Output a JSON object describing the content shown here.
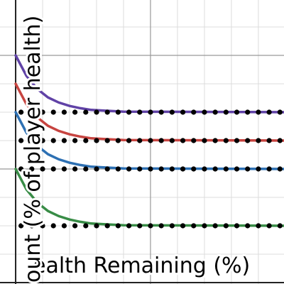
{
  "chart_data": {
    "type": "line",
    "x_label": "ealth Remaining (%)",
    "y_label": "ount (% of player health)",
    "xlim": [
      -5.8,
      99.5
    ],
    "ylim": [
      -0.25,
      49.75
    ],
    "xticks": [
      0,
      10,
      20,
      30,
      40,
      50,
      60,
      70,
      80,
      90
    ],
    "major_xticks": [
      0,
      50
    ],
    "yticks": [
      0,
      5,
      10,
      15,
      20,
      25,
      30,
      35,
      40,
      45
    ],
    "major_yticks": [
      0,
      20,
      40
    ],
    "grid": true,
    "series": [
      {
        "type": "line",
        "color": "#6042a6",
        "x": [
          0,
          4,
          8,
          12,
          16,
          20,
          24,
          28,
          32,
          40,
          100
        ],
        "values": [
          40,
          36.4,
          34.1,
          32.6,
          31.7,
          31.1,
          30.7,
          30.4,
          30.3,
          30.1,
          30
        ]
      },
      {
        "type": "line",
        "color": "#c74440",
        "x": [
          0,
          4,
          8,
          12,
          16,
          20,
          24,
          28,
          32,
          40,
          100
        ],
        "values": [
          35,
          31.4,
          29.1,
          27.6,
          26.7,
          26.1,
          25.7,
          25.4,
          25.3,
          25.1,
          25
        ]
      },
      {
        "type": "line",
        "color": "#2d70b3",
        "x": [
          0,
          4,
          8,
          12,
          16,
          20,
          24,
          28,
          32,
          40,
          100
        ],
        "values": [
          30,
          26.4,
          24.1,
          22.6,
          21.7,
          21.1,
          20.7,
          20.4,
          20.3,
          20.1,
          20
        ]
      },
      {
        "type": "line",
        "color": "#388c46",
        "x": [
          0,
          4,
          8,
          12,
          16,
          20,
          24,
          28,
          32,
          40,
          100
        ],
        "values": [
          20,
          16.4,
          14.1,
          12.6,
          11.7,
          11.1,
          10.7,
          10.4,
          10.3,
          10.1,
          10
        ]
      },
      {
        "type": "scatter",
        "color": "#000000",
        "x": [
          2,
          6,
          10,
          14,
          18,
          22,
          26,
          30,
          34,
          38,
          42,
          46,
          50,
          54,
          58,
          62,
          66,
          70,
          74,
          78,
          82,
          86,
          90,
          94,
          98
        ],
        "values": [
          30,
          30,
          30,
          30,
          30,
          30,
          30,
          30,
          30,
          30,
          30,
          30,
          30,
          30,
          30,
          30,
          30,
          30,
          30,
          30,
          30,
          30,
          30,
          30,
          30
        ]
      },
      {
        "type": "scatter",
        "color": "#000000",
        "x": [
          2,
          6,
          10,
          14,
          18,
          22,
          26,
          30,
          34,
          38,
          42,
          46,
          50,
          54,
          58,
          62,
          66,
          70,
          74,
          78,
          82,
          86,
          90,
          94,
          98
        ],
        "values": [
          25,
          25,
          25,
          25,
          25,
          25,
          25,
          25,
          25,
          25,
          25,
          25,
          25,
          25,
          25,
          25,
          25,
          25,
          25,
          25,
          25,
          25,
          25,
          25,
          25
        ]
      },
      {
        "type": "scatter",
        "color": "#000000",
        "x": [
          2,
          6,
          10,
          14,
          18,
          22,
          26,
          30,
          34,
          38,
          42,
          46,
          50,
          54,
          58,
          62,
          66,
          70,
          74,
          78,
          82,
          86,
          90,
          94,
          98
        ],
        "values": [
          20,
          20,
          20,
          20,
          20,
          20,
          20,
          20,
          20,
          20,
          20,
          20,
          20,
          20,
          20,
          20,
          20,
          20,
          20,
          20,
          20,
          20,
          20,
          20,
          20
        ]
      },
      {
        "type": "scatter",
        "color": "#000000",
        "x": [
          2,
          6,
          10,
          14,
          18,
          22,
          26,
          30,
          34,
          38,
          42,
          46,
          50,
          54,
          58,
          62,
          66,
          70,
          74,
          78,
          82,
          86,
          90,
          94,
          98
        ],
        "values": [
          10,
          10,
          10,
          10,
          10,
          10,
          10,
          10,
          10,
          10,
          10,
          10,
          10,
          10,
          10,
          10,
          10,
          10,
          10,
          10,
          10,
          10,
          10,
          10,
          10
        ]
      }
    ]
  }
}
